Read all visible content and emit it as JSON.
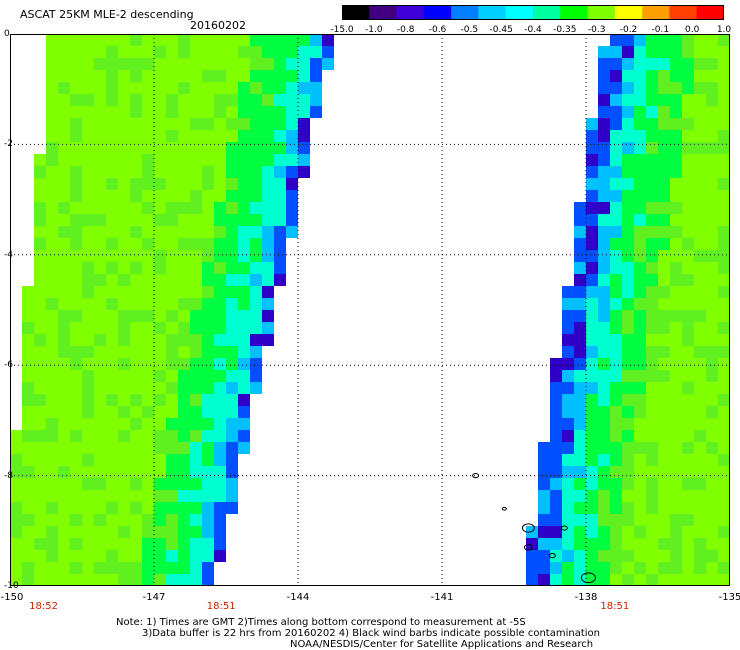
{
  "header": {
    "title": "ASCAT 25KM MLE-2 descending",
    "date": "20160202"
  },
  "colorbar": {
    "labels": [
      "-15.0",
      "-1.0",
      "-0.8",
      "-0.6",
      "-0.5",
      "-0.45",
      "-0.4",
      "-0.35",
      "-0.3",
      "-0.2",
      "-0.1",
      "0.0",
      "1.0"
    ],
    "colors": [
      "#000000",
      "#40007f",
      "#4000d8",
      "#0000ff",
      "#0080ff",
      "#00d0ff",
      "#00ffff",
      "#00ffa0",
      "#00ff00",
      "#80ff00",
      "#ffff00",
      "#ffa000",
      "#ff4000",
      "#ff0000"
    ]
  },
  "map": {
    "lon_labels": [
      "-150",
      "-147",
      "-144",
      "-141",
      "-138",
      "-135"
    ],
    "lat_labels": [
      "0",
      "-2",
      "-4",
      "-6",
      "-8",
      "-10"
    ],
    "lon_range": [
      -150,
      -135
    ],
    "lat_range": [
      0,
      -10
    ],
    "grid": "dotted",
    "times": [
      {
        "text": "18:52",
        "lon": -149.3
      },
      {
        "text": "18:51",
        "lon": -145.6
      },
      {
        "text": "18:51",
        "lon": -137.4
      }
    ],
    "swath_colors": {
      "dominant": "#80ff00",
      "secondary": "#60f020",
      "mid": "#00ff40",
      "cyan": "#00ffd0",
      "light_blue": "#00c0ff",
      "blue": "#0050ff",
      "dark_blue": "#3000c8"
    },
    "coastline_color": "#000000"
  },
  "notes": [
    "Note: 1) Times are GMT 2)Times along bottom correspond to measurement at -5S",
    "3)Data buffer is 22 hrs from 20160202 4) Black wind barbs indicate possible contamination",
    "NOAA/NESDIS/Center for Satellite Applications and Research"
  ]
}
